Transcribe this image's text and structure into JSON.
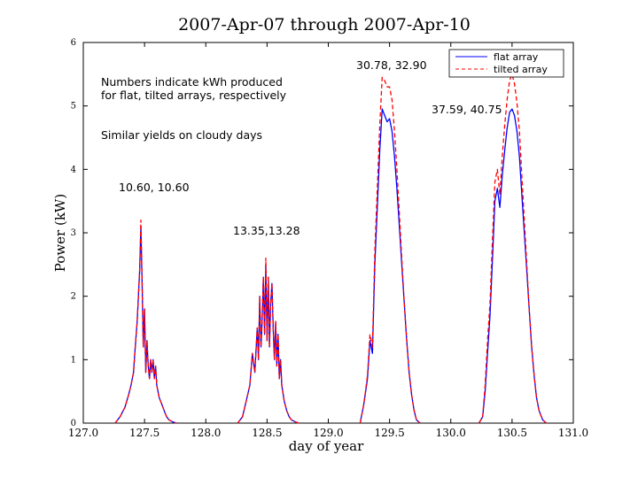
{
  "chart_data": {
    "type": "line",
    "title": "2007-Apr-07 through 2007-Apr-10",
    "xlabel": "day of year",
    "ylabel": "Power (kW)",
    "xlim": [
      127.0,
      131.0
    ],
    "ylim": [
      0,
      6
    ],
    "xticks": [
      "127.0",
      "127.5",
      "128.0",
      "128.5",
      "129.0",
      "129.5",
      "130.0",
      "130.5",
      "131.0"
    ],
    "yticks": [
      "0",
      "1",
      "2",
      "3",
      "4",
      "5",
      "6"
    ],
    "legend_position": "top-right",
    "series": [
      {
        "name": "flat array",
        "color": "#0000ff",
        "x": [
          127.26,
          127.3,
          127.34,
          127.37,
          127.39,
          127.41,
          127.42,
          127.44,
          127.46,
          127.47,
          127.48,
          127.49,
          127.5,
          127.51,
          127.52,
          127.53,
          127.54,
          127.55,
          127.56,
          127.57,
          127.58,
          127.59,
          127.6,
          127.62,
          127.64,
          127.66,
          127.68,
          127.7,
          127.73,
          127.76,
          128.26,
          128.3,
          128.33,
          128.36,
          128.38,
          128.4,
          128.42,
          128.43,
          128.44,
          128.45,
          128.46,
          128.47,
          128.48,
          128.49,
          128.5,
          128.51,
          128.52,
          128.53,
          128.54,
          128.55,
          128.56,
          128.57,
          128.58,
          128.59,
          128.6,
          128.61,
          128.62,
          128.64,
          128.66,
          128.68,
          128.7,
          128.73,
          128.76,
          129.26,
          129.29,
          129.32,
          129.34,
          129.36,
          129.38,
          129.4,
          129.42,
          129.44,
          129.46,
          129.48,
          129.5,
          129.52,
          129.54,
          129.56,
          129.58,
          129.6,
          129.62,
          129.64,
          129.66,
          129.68,
          129.7,
          129.72,
          129.75,
          130.23,
          130.26,
          130.28,
          130.3,
          130.32,
          130.34,
          130.36,
          130.38,
          130.4,
          130.42,
          130.44,
          130.46,
          130.48,
          130.5,
          130.52,
          130.54,
          130.56,
          130.58,
          130.6,
          130.62,
          130.64,
          130.66,
          130.68,
          130.7,
          130.72,
          130.75,
          130.78
        ],
        "y": [
          0,
          0.1,
          0.25,
          0.45,
          0.6,
          0.8,
          1.1,
          1.6,
          2.4,
          3.1,
          2.2,
          1.2,
          1.8,
          0.8,
          1.3,
          0.9,
          0.7,
          1.0,
          0.8,
          1.0,
          0.7,
          0.9,
          0.6,
          0.4,
          0.3,
          0.2,
          0.1,
          0.05,
          0.02,
          0,
          0,
          0.1,
          0.35,
          0.6,
          1.1,
          0.8,
          1.5,
          1.0,
          2.0,
          1.2,
          1.6,
          2.3,
          1.4,
          2.5,
          1.3,
          2.3,
          1.2,
          1.9,
          2.2,
          1.5,
          1.0,
          1.6,
          0.9,
          1.4,
          0.7,
          1.0,
          0.6,
          0.35,
          0.2,
          0.1,
          0.05,
          0.02,
          0,
          0,
          0.3,
          0.7,
          1.3,
          1.1,
          2.5,
          3.4,
          4.3,
          4.95,
          4.85,
          4.75,
          4.8,
          4.6,
          4.2,
          3.7,
          3.1,
          2.5,
          1.9,
          1.3,
          0.8,
          0.45,
          0.2,
          0.05,
          0,
          0,
          0.1,
          0.5,
          1.1,
          1.7,
          2.6,
          3.5,
          3.7,
          3.4,
          3.9,
          4.3,
          4.65,
          4.9,
          4.95,
          4.85,
          4.6,
          4.2,
          3.6,
          3.0,
          2.4,
          1.8,
          1.2,
          0.75,
          0.4,
          0.2,
          0.05,
          0
        ]
      },
      {
        "name": "tilted array",
        "color": "#ff0000",
        "x": [
          127.26,
          127.3,
          127.34,
          127.37,
          127.39,
          127.41,
          127.42,
          127.44,
          127.46,
          127.47,
          127.48,
          127.49,
          127.5,
          127.51,
          127.52,
          127.53,
          127.54,
          127.55,
          127.56,
          127.57,
          127.58,
          127.59,
          127.6,
          127.62,
          127.64,
          127.66,
          127.68,
          127.7,
          127.73,
          127.76,
          128.26,
          128.3,
          128.33,
          128.36,
          128.38,
          128.4,
          128.42,
          128.43,
          128.44,
          128.45,
          128.46,
          128.47,
          128.48,
          128.49,
          128.5,
          128.51,
          128.52,
          128.53,
          128.54,
          128.55,
          128.56,
          128.57,
          128.58,
          128.59,
          128.6,
          128.61,
          128.62,
          128.64,
          128.66,
          128.68,
          128.7,
          128.73,
          128.76,
          129.26,
          129.29,
          129.32,
          129.34,
          129.36,
          129.38,
          129.4,
          129.42,
          129.44,
          129.46,
          129.48,
          129.5,
          129.52,
          129.54,
          129.56,
          129.58,
          129.6,
          129.62,
          129.64,
          129.66,
          129.68,
          129.7,
          129.72,
          129.75,
          130.23,
          130.26,
          130.28,
          130.3,
          130.32,
          130.34,
          130.36,
          130.38,
          130.4,
          130.42,
          130.44,
          130.46,
          130.48,
          130.5,
          130.52,
          130.54,
          130.56,
          130.58,
          130.6,
          130.62,
          130.64,
          130.66,
          130.68,
          130.7,
          130.72,
          130.75,
          130.78
        ],
        "y": [
          0,
          0.1,
          0.25,
          0.45,
          0.6,
          0.8,
          1.1,
          1.6,
          2.4,
          3.2,
          2.2,
          1.2,
          1.8,
          0.8,
          1.3,
          0.9,
          0.7,
          1.0,
          0.8,
          1.0,
          0.7,
          0.9,
          0.6,
          0.4,
          0.3,
          0.2,
          0.1,
          0.05,
          0.02,
          0,
          0,
          0.1,
          0.35,
          0.6,
          1.1,
          0.8,
          1.5,
          1.0,
          2.0,
          1.2,
          1.6,
          2.3,
          1.4,
          2.6,
          1.3,
          2.3,
          1.2,
          1.9,
          2.2,
          1.5,
          1.0,
          1.6,
          0.9,
          1.4,
          0.7,
          1.0,
          0.6,
          0.35,
          0.2,
          0.1,
          0.05,
          0.02,
          0,
          0,
          0.3,
          0.75,
          1.4,
          1.2,
          2.7,
          3.7,
          4.7,
          5.45,
          5.4,
          5.3,
          5.3,
          5.1,
          4.6,
          4.0,
          3.3,
          2.6,
          1.9,
          1.3,
          0.8,
          0.45,
          0.2,
          0.05,
          0,
          0,
          0.1,
          0.6,
          1.3,
          1.9,
          2.9,
          3.8,
          4.0,
          3.6,
          4.2,
          4.7,
          5.1,
          5.4,
          5.5,
          5.35,
          5.05,
          4.6,
          3.9,
          3.2,
          2.5,
          1.8,
          1.2,
          0.75,
          0.4,
          0.2,
          0.05,
          0
        ]
      }
    ],
    "annotations": [
      {
        "id": "note-line1",
        "text": "Numbers indicate kWh produced"
      },
      {
        "id": "note-line2",
        "text": "for flat, tilted arrays, respectively"
      },
      {
        "id": "note-cloudy",
        "text": "Similar yields on cloudy days"
      },
      {
        "id": "day1-yield",
        "text": "10.60, 10.60"
      },
      {
        "id": "day2-yield",
        "text": "13.35,13.28"
      },
      {
        "id": "day3-yield",
        "text": "30.78, 32.90"
      },
      {
        "id": "day4-yield",
        "text": "37.59, 40.75"
      }
    ]
  }
}
